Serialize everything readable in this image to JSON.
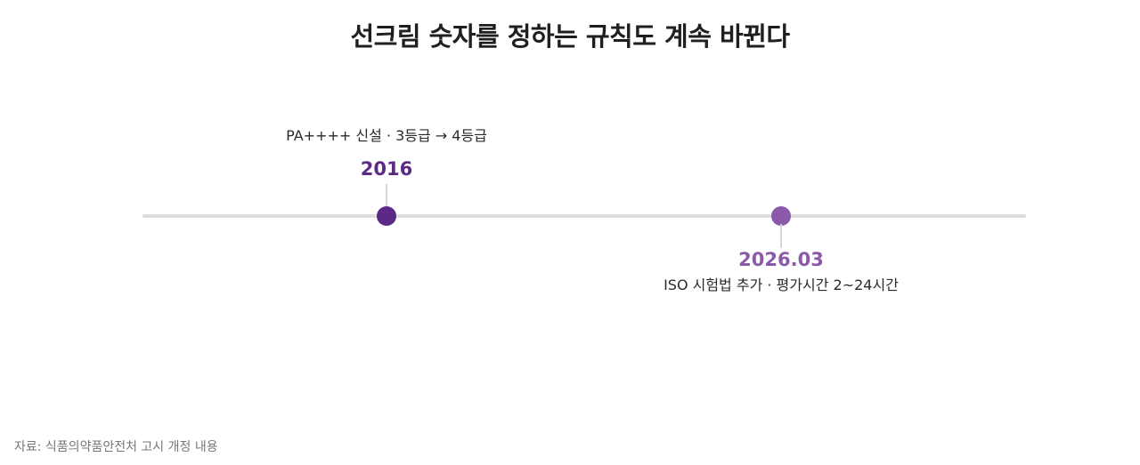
{
  "title": "선크림 숫자를 정하는 규칙도 계속 바뀐다",
  "colors": {
    "event1": "#5b2a86",
    "event2": "#8a5aa8",
    "line": "#dedede"
  },
  "events": [
    {
      "year": "2016",
      "description": "PA++++ 신설 · 3등급 → 4등급"
    },
    {
      "year": "2026.03",
      "description": "ISO 시험법 추가 · 평가시간 2~24시간"
    }
  ],
  "source": "자료: 식품의약품안전처 고시 개정 내용"
}
